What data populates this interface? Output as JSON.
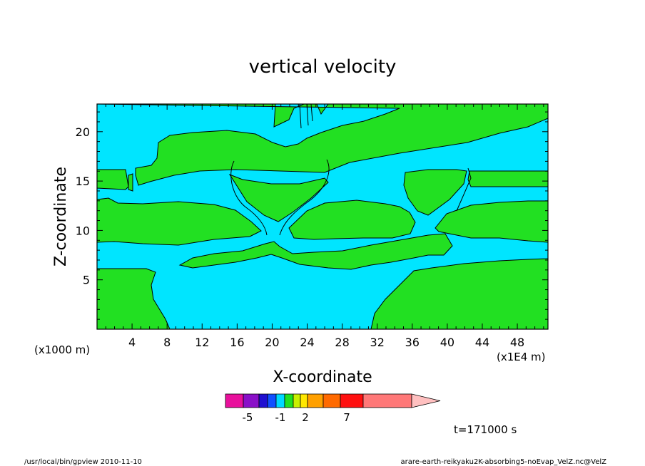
{
  "chart_data": {
    "type": "heatmap",
    "title": "vertical velocity",
    "xlabel": "X-coordinate",
    "ylabel": "Z-coordinate",
    "x_unit_left": "(x1000 m)",
    "x_unit_right": "(x1E4 m)",
    "xlim": [
      0,
      51.5
    ],
    "ylim": [
      0,
      22.8
    ],
    "x_ticks": [
      "4",
      "8",
      "12",
      "16",
      "20",
      "24",
      "28",
      "32",
      "36",
      "40",
      "44",
      "48"
    ],
    "x_tick_values": [
      4,
      8,
      12,
      16,
      20,
      24,
      28,
      32,
      36,
      40,
      44,
      48
    ],
    "y_ticks": [
      "5",
      "10",
      "15",
      "20"
    ],
    "y_tick_values": [
      5,
      10,
      15,
      20
    ],
    "colors": {
      "positive_region": "#22e022",
      "negative_region": "#00e5ff",
      "outline": "#000000"
    },
    "colorbar": {
      "colors": [
        "#e8109c",
        "#8a10c8",
        "#2010d0",
        "#1050ff",
        "#00d8ff",
        "#20e020",
        "#c8f000",
        "#ffe800",
        "#ffa000",
        "#ff6a00",
        "#ff1010",
        "#ff7878",
        "#ffc0c0"
      ],
      "tick_labels": [
        "-5",
        "-1",
        "2",
        "7"
      ],
      "tick_values": [
        -5,
        -1,
        2,
        7
      ]
    },
    "time_label": "t=171000 s"
  },
  "footer": {
    "left": "/usr/local/bin/gpview   2010-11-10",
    "right": "arare-earth-reikyaku2K-absorbing5-noEvap_VelZ.nc@VelZ"
  }
}
